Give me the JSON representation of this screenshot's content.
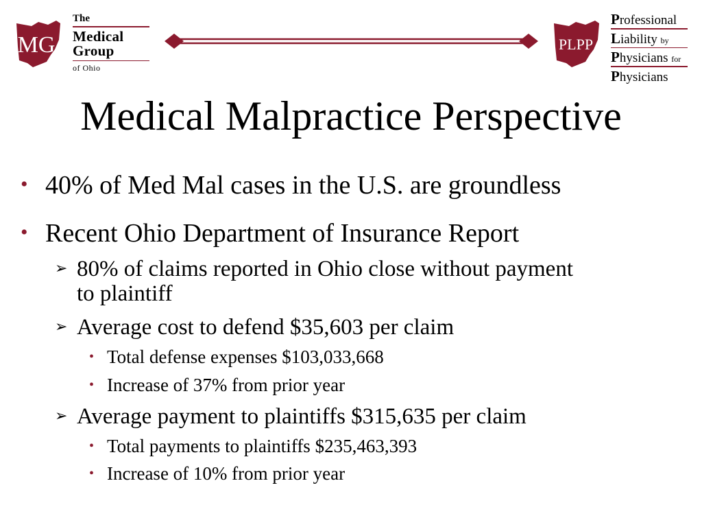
{
  "header": {
    "left_logo": {
      "monogram": "MG",
      "lines": [
        "The",
        "Medical",
        "Group",
        "of Ohio"
      ]
    },
    "right_logo": {
      "monogram": "PLPP",
      "line1_cap": "P",
      "line1_rest": "rofessional",
      "line2_cap": "L",
      "line2_rest": "iability ",
      "line2_small": "by",
      "line3_cap": "P",
      "line3_rest": "hysicians ",
      "line3_small": "for",
      "line4_cap": "P",
      "line4_rest": "hysicians"
    },
    "accent_color": "#8b1a2e"
  },
  "slide": {
    "title": "Medical Malpractice Perspective",
    "bullets": [
      {
        "text": "40% of Med Mal cases in the U.S. are groundless"
      },
      {
        "text": "Recent Ohio Department of Insurance Report"
      }
    ],
    "sub_bullets": [
      {
        "line1": "80% of claims reported in Ohio close without payment",
        "line2": "to plaintiff"
      },
      {
        "line1": "Average cost to defend $35,603 per claim"
      },
      {
        "line1": "Average payment to plaintiffs $315,635 per claim"
      }
    ],
    "sub_sub_bullets": [
      "Total defense expenses $103,033,668",
      "Increase of 37% from prior year",
      "Total payments to plaintiffs $235,463,393",
      "Increase of 10% from prior year"
    ]
  }
}
